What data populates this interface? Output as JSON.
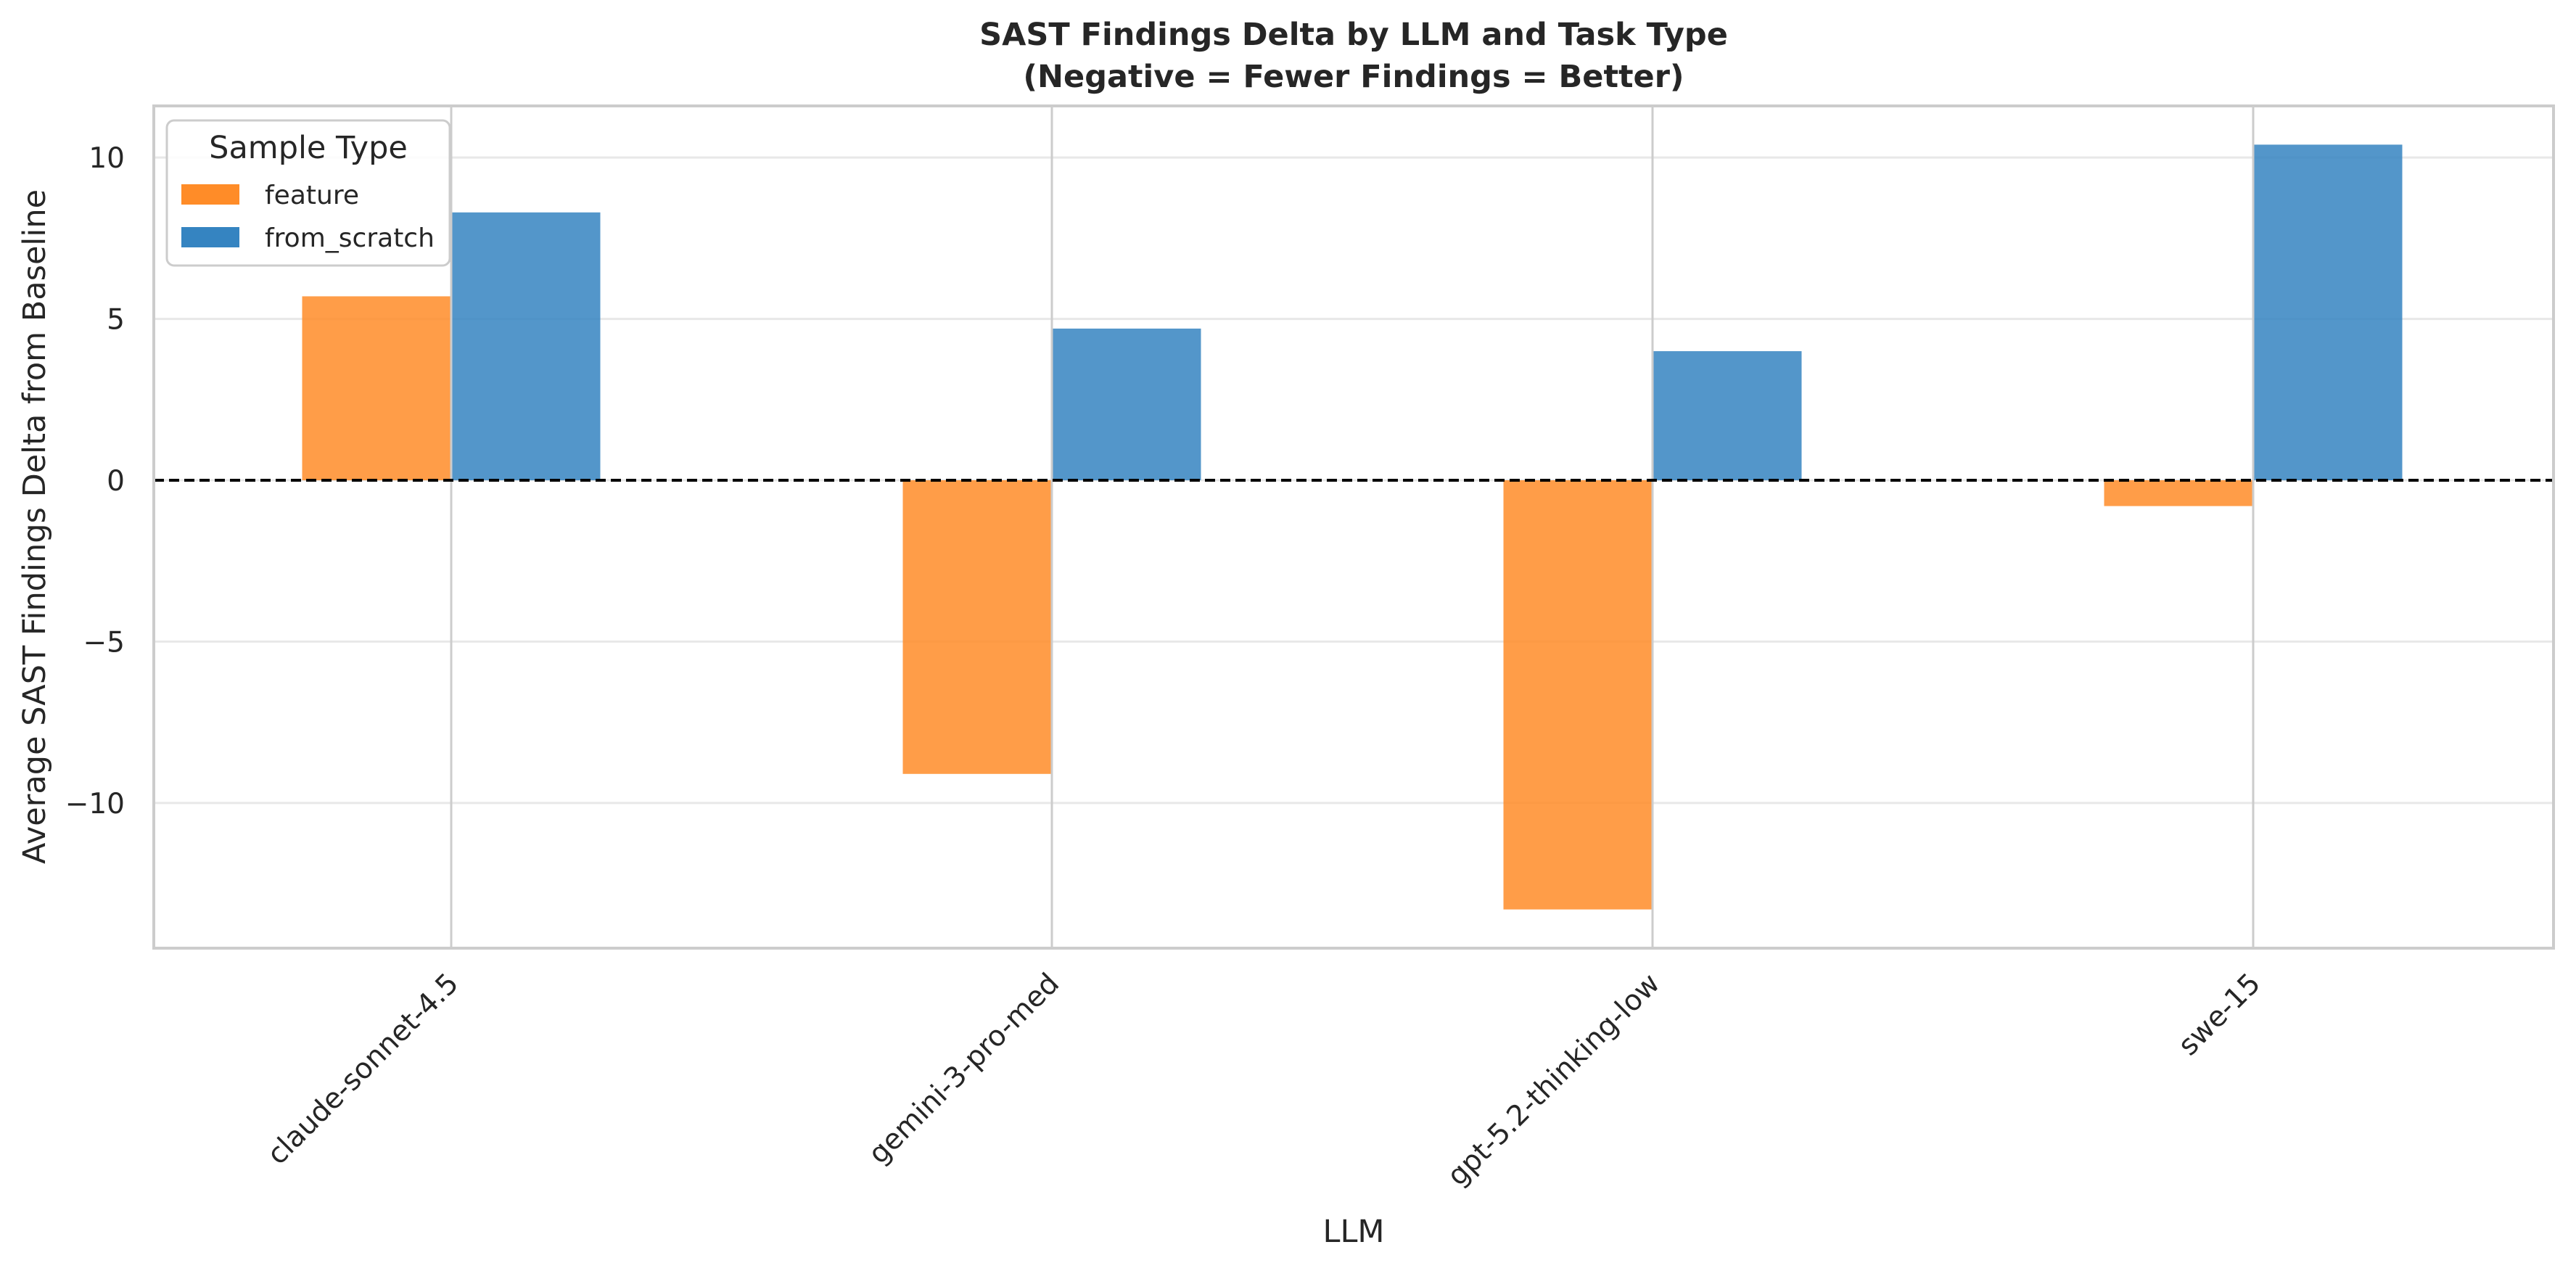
{
  "chart_data": {
    "type": "bar",
    "title": "SAST Findings Delta by LLM and Task Type",
    "subtitle": "(Negative = Fewer Findings = Better)",
    "xlabel": "LLM",
    "ylabel": "Average SAST Findings Delta from Baseline",
    "categories": [
      "claude-sonnet-4.5",
      "gemini-3-pro-med",
      "gpt-5.2-thinking-low",
      "swe-15"
    ],
    "series": [
      {
        "name": "feature",
        "color": "#ff8c28",
        "values": [
          5.7,
          -9.1,
          -13.3,
          -0.8
        ]
      },
      {
        "name": "from_scratch",
        "color": "#3584c1",
        "values": [
          8.3,
          4.7,
          4.0,
          10.4
        ]
      }
    ],
    "ylim": [
      -14.5,
      11.6
    ],
    "yticks": [
      -10,
      -5,
      0,
      5,
      10
    ],
    "ytick_labels": [
      "−10",
      "−5",
      "0",
      "5",
      "10"
    ],
    "grid": true,
    "zero_line": "dashed",
    "legend": {
      "title": "Sample Type",
      "placement": "top-left"
    }
  }
}
